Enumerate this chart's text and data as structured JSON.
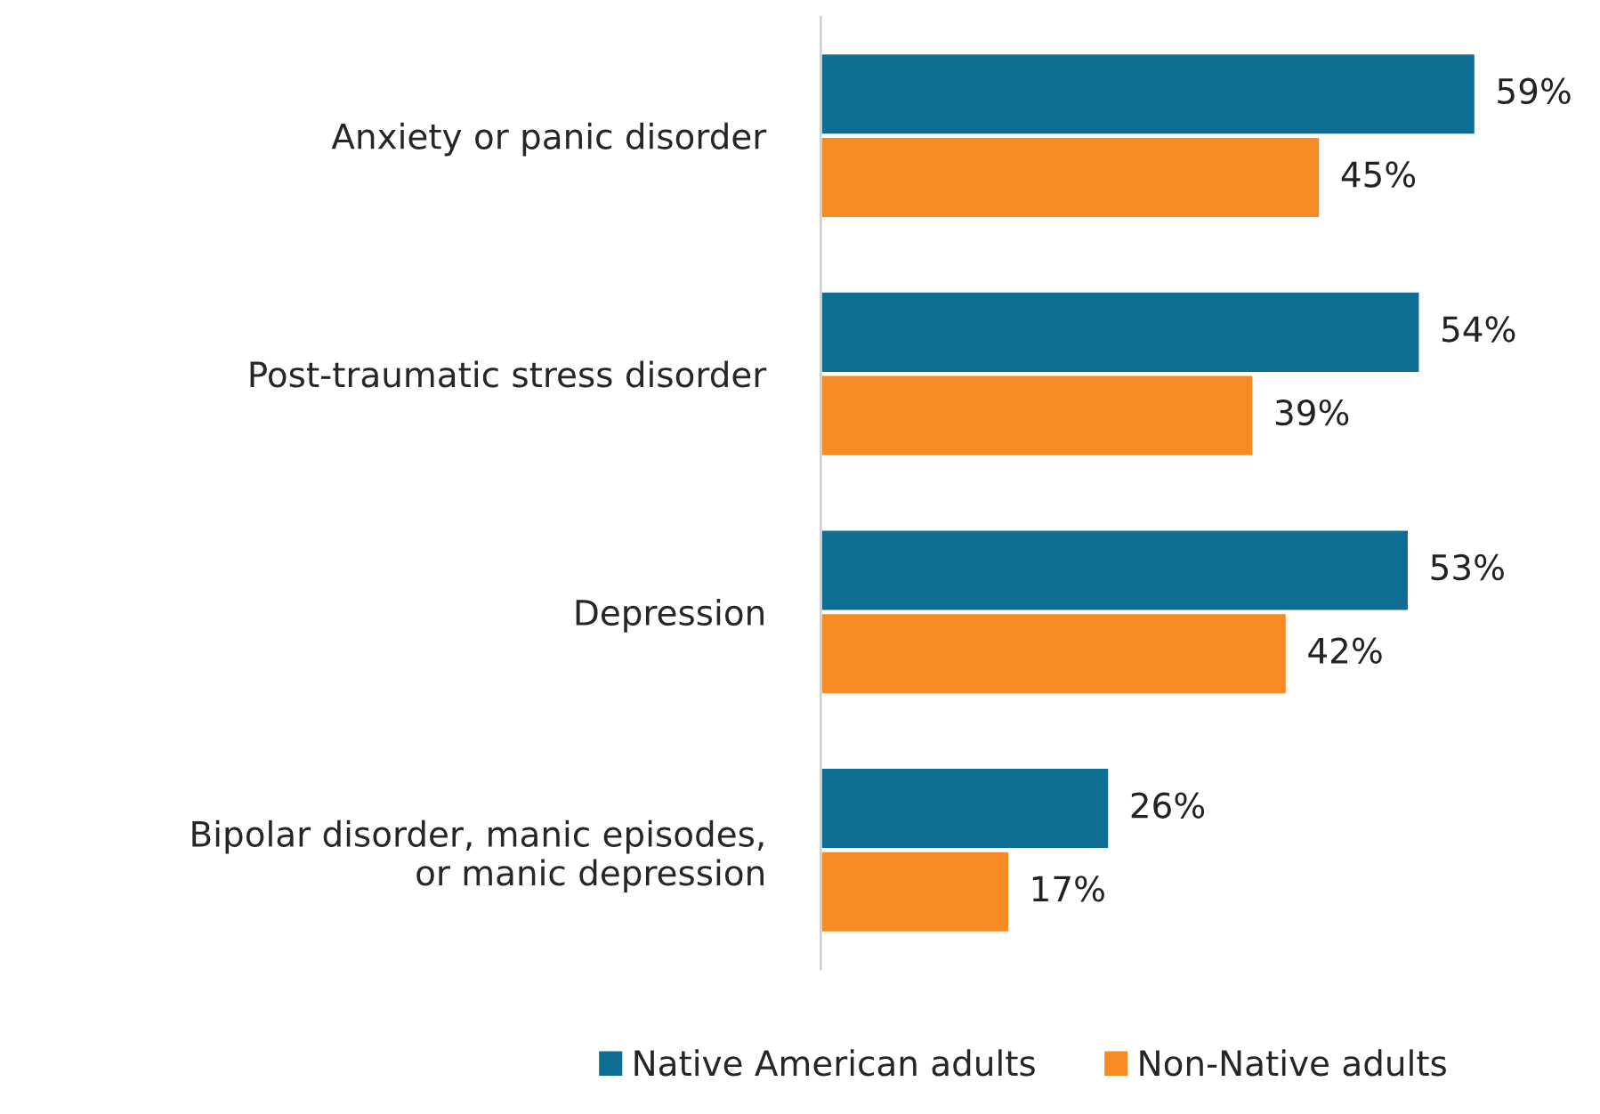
{
  "chart_data": {
    "type": "bar",
    "orientation": "horizontal",
    "categories": [
      "Anxiety or panic disorder",
      "Post-traumatic stress disorder",
      "Depression",
      "Bipolar disorder, manic episodes,\nor manic depression"
    ],
    "series": [
      {
        "name": "Native American adults",
        "color": "#0f6e93",
        "values": [
          59,
          54,
          53,
          26
        ],
        "value_labels": [
          "59%",
          "54%",
          "53%",
          "26%"
        ]
      },
      {
        "name": "Non-Native adults",
        "color": "#f68b24",
        "values": [
          45,
          39,
          42,
          17
        ],
        "value_labels": [
          "45%",
          "39%",
          "42%",
          "17%"
        ]
      }
    ],
    "legend": "bottom",
    "grid": false
  }
}
